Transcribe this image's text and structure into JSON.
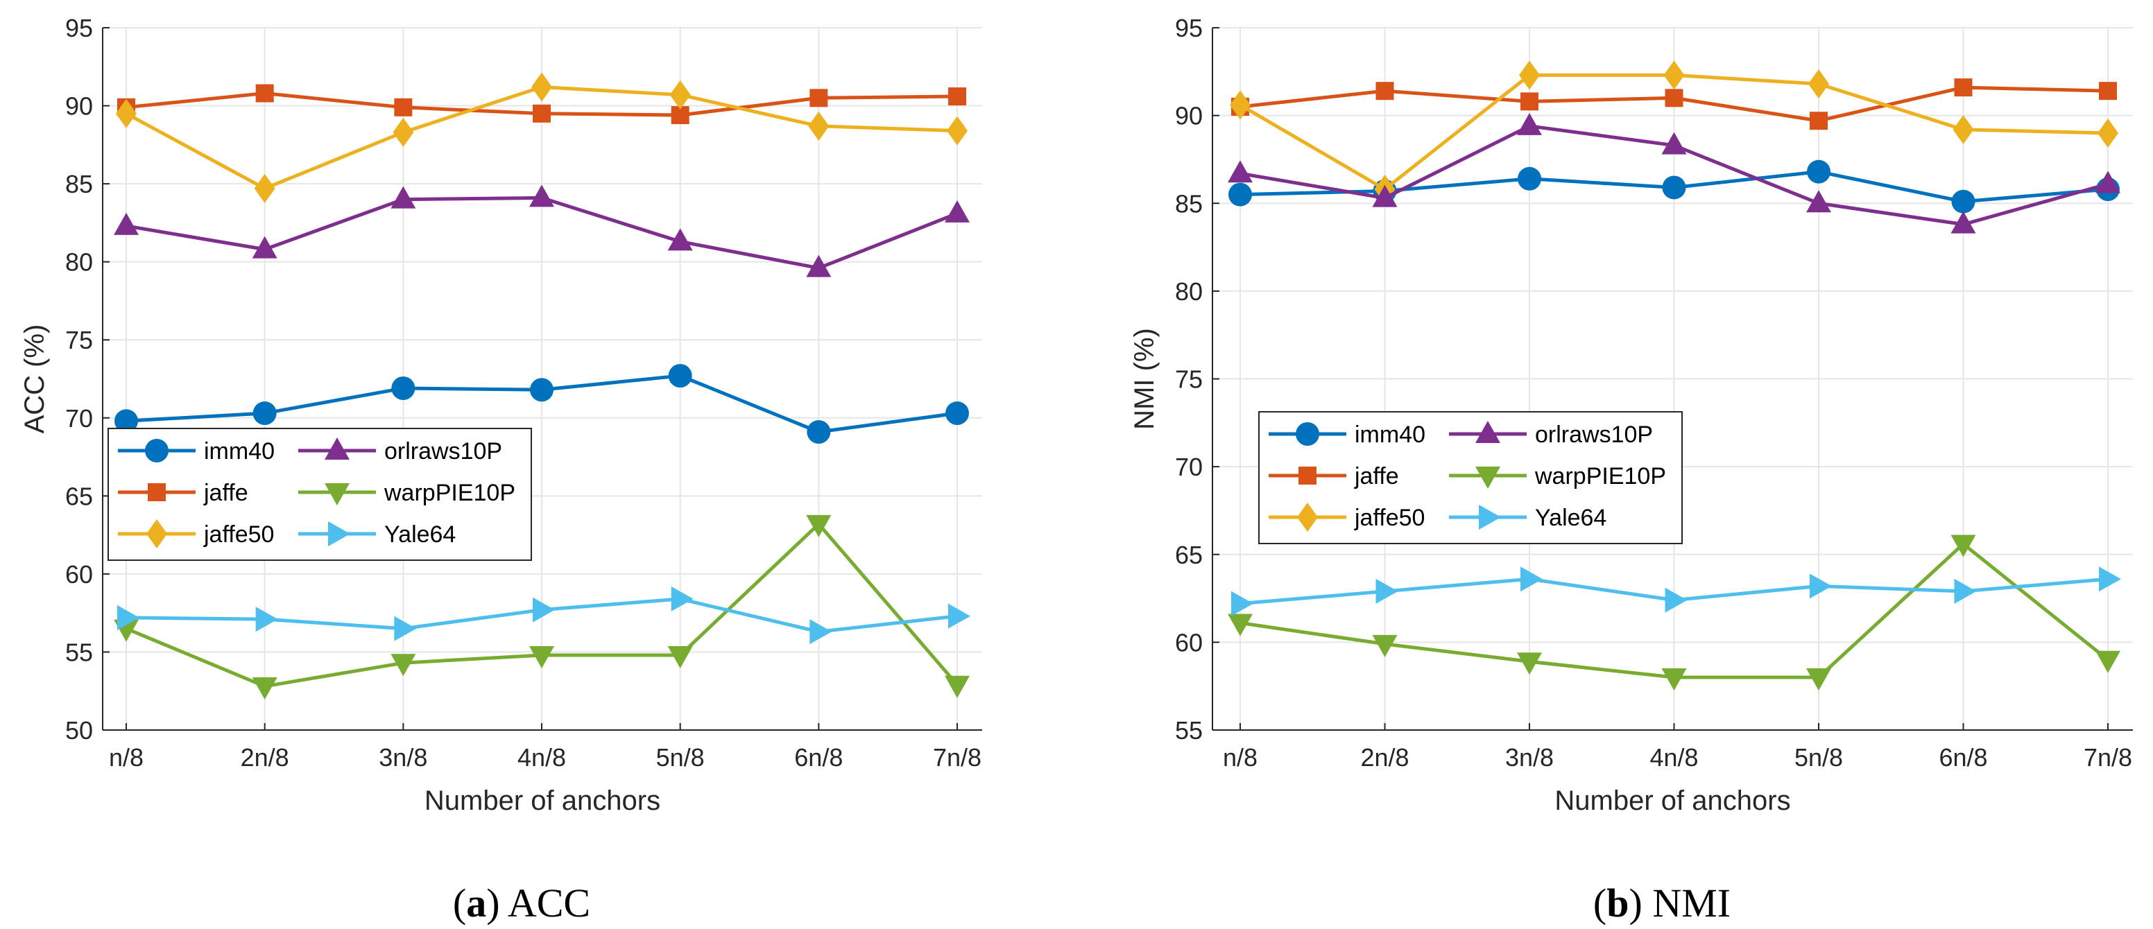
{
  "chart_data": [
    {
      "type": "line",
      "title": "",
      "caption_letter": "a",
      "caption_text": "ACC",
      "xlabel": "Number of anchors",
      "ylabel": "ACC (%)",
      "categories": [
        "n/8",
        "2n/8",
        "3n/8",
        "4n/8",
        "5n/8",
        "6n/8",
        "7n/8"
      ],
      "ylim": [
        50,
        95
      ],
      "yticks": [
        50,
        55,
        60,
        65,
        70,
        75,
        80,
        85,
        90,
        95
      ],
      "grid": true,
      "legend_placement": "center-left",
      "series": [
        {
          "name": "imm40",
          "marker": "circle",
          "color": "#0072BD",
          "values": [
            69.8,
            70.3,
            71.9,
            71.8,
            72.7,
            69.1,
            70.3
          ]
        },
        {
          "name": "jaffe",
          "marker": "square",
          "color": "#D95319",
          "values": [
            89.9,
            90.8,
            89.9,
            89.5,
            89.4,
            90.5,
            90.6
          ]
        },
        {
          "name": "jaffe50",
          "marker": "diamond",
          "color": "#EDB120",
          "values": [
            89.5,
            84.7,
            88.3,
            91.2,
            90.7,
            88.7,
            88.4
          ]
        },
        {
          "name": "orlraws10P",
          "marker": "triangle-up",
          "color": "#7E2F8E",
          "values": [
            82.3,
            80.8,
            84.0,
            84.1,
            81.3,
            79.6,
            83.1
          ]
        },
        {
          "name": "warpPIE10P",
          "marker": "triangle-down",
          "color": "#77AC30",
          "values": [
            56.5,
            52.8,
            54.3,
            54.8,
            54.8,
            63.2,
            52.9
          ]
        },
        {
          "name": "Yale64",
          "marker": "triangle-right",
          "color": "#4DBEEE",
          "values": [
            57.2,
            57.1,
            56.5,
            57.7,
            58.4,
            56.3,
            57.3
          ]
        }
      ]
    },
    {
      "type": "line",
      "title": "",
      "caption_letter": "b",
      "caption_text": "NMI",
      "xlabel": "Number of anchors",
      "ylabel": "NMI (%)",
      "categories": [
        "n/8",
        "2n/8",
        "3n/8",
        "4n/8",
        "5n/8",
        "6n/8",
        "7n/8"
      ],
      "ylim": [
        55,
        95
      ],
      "yticks": [
        55,
        60,
        65,
        70,
        75,
        80,
        85,
        90,
        95
      ],
      "grid": true,
      "legend_placement": "center-left",
      "series": [
        {
          "name": "imm40",
          "marker": "circle",
          "color": "#0072BD",
          "values": [
            85.5,
            85.7,
            86.4,
            85.9,
            86.8,
            85.1,
            85.8
          ]
        },
        {
          "name": "jaffe",
          "marker": "square",
          "color": "#D95319",
          "values": [
            90.5,
            91.4,
            90.8,
            91.0,
            89.7,
            91.6,
            91.4
          ]
        },
        {
          "name": "jaffe50",
          "marker": "diamond",
          "color": "#EDB120",
          "values": [
            90.6,
            85.8,
            92.3,
            92.3,
            91.8,
            89.2,
            89.0
          ]
        },
        {
          "name": "orlraws10P",
          "marker": "triangle-up",
          "color": "#7E2F8E",
          "values": [
            86.7,
            85.3,
            89.4,
            88.3,
            85.0,
            83.8,
            86.1
          ]
        },
        {
          "name": "warpPIE10P",
          "marker": "triangle-down",
          "color": "#77AC30",
          "values": [
            61.1,
            59.9,
            58.9,
            58.0,
            58.0,
            65.6,
            59.0
          ]
        },
        {
          "name": "Yale64",
          "marker": "triangle-right",
          "color": "#4DBEEE",
          "values": [
            62.2,
            62.9,
            63.6,
            62.4,
            63.2,
            62.9,
            63.6
          ]
        }
      ]
    }
  ]
}
